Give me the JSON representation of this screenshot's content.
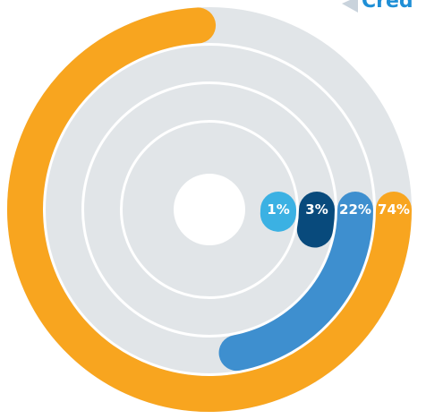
{
  "chart_data": {
    "type": "radial_bar",
    "title": "Cred",
    "values": [
      74,
      22,
      3,
      1
    ],
    "value_labels": [
      "74%",
      "22%",
      "3%",
      "1%"
    ],
    "colors": [
      "#f8a51f",
      "#3e8fcf",
      "#084a7c",
      "#3bb1e3"
    ],
    "track_color": "#e1e5e8",
    "max": 100
  }
}
